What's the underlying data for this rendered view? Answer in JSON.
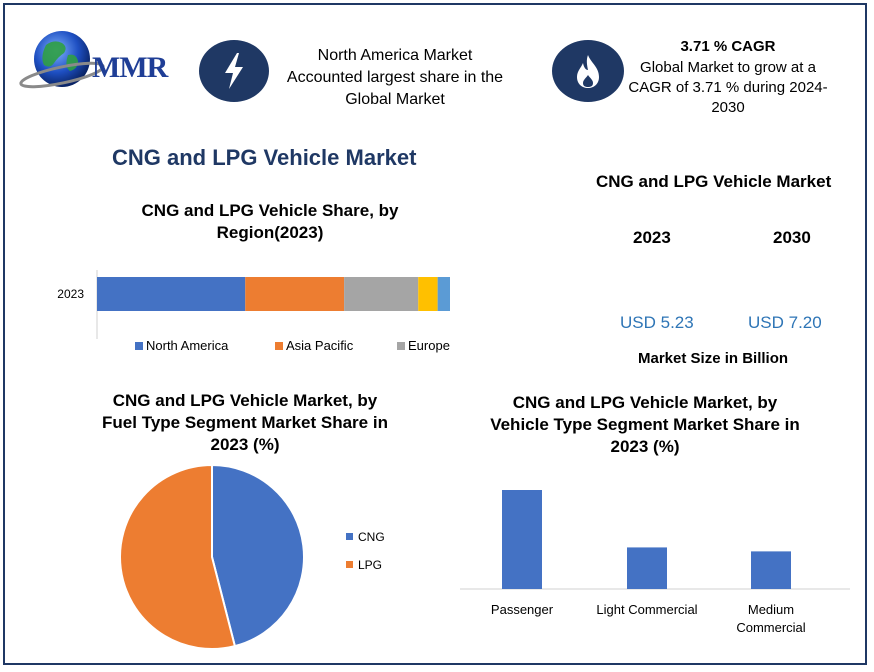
{
  "brand": {
    "logo_text": "MMR"
  },
  "highlights": {
    "region": {
      "icon": "lightning-icon",
      "text_line1": "North America Market",
      "text_line2": "Accounted largest share in the",
      "text_line3": "Global Market"
    },
    "cagr": {
      "icon": "flame-icon",
      "title": "3.71 % CAGR",
      "line1": "Global Market to grow at a",
      "line2": "CAGR of 3.71 % during 2024-",
      "line3": "2030"
    }
  },
  "main_title": "CNG and LPG Vehicle Market",
  "market_size": {
    "title": "CNG and LPG Vehicle Market",
    "year1": "2023",
    "year2": "2030",
    "value1": "USD 5.23",
    "value2": "USD 7.20",
    "subtitle": "Market Size in Billion"
  },
  "colors": {
    "blue": "#4472c4",
    "orange": "#ed7d31",
    "gray": "#a5a5a5",
    "yellow": "#ffc000",
    "lightblue": "#5b9bd5",
    "navy": "#1f3864"
  },
  "chart_data": [
    {
      "type": "bar",
      "orientation": "horizontal-stacked",
      "title_line1": "CNG and LPG Vehicle Share, by",
      "title_line2": "Region(2023)",
      "categories": [
        "2023"
      ],
      "series": [
        {
          "name": "North America",
          "values": [
            42
          ]
        },
        {
          "name": "Asia Pacific",
          "values": [
            28
          ]
        },
        {
          "name": "Europe",
          "values": [
            21
          ]
        },
        {
          "name": "",
          "values": [
            5.5
          ]
        },
        {
          "name": "",
          "values": [
            3.5
          ]
        }
      ],
      "xlim": [
        0,
        100
      ]
    },
    {
      "type": "pie",
      "title_line1": "CNG and LPG Vehicle Market, by",
      "title_line2": "Fuel Type Segment Market Share in",
      "title_line3": "2023 (%)",
      "labels": [
        "CNG",
        "LPG"
      ],
      "values": [
        46,
        54
      ]
    },
    {
      "type": "bar",
      "title_line1": "CNG and LPG Vehicle Market, by",
      "title_line2": "Vehicle Type Segment Market Share in",
      "title_line3": "2023 (%)",
      "categories": [
        "Passenger",
        "Light Commercial",
        "Medium Commercial"
      ],
      "category_lines": [
        [
          "Passenger"
        ],
        [
          "Light Commercial"
        ],
        [
          "Medium",
          "Commercial"
        ]
      ],
      "values": [
        50,
        21,
        19
      ],
      "ylim": [
        0,
        50
      ]
    }
  ]
}
